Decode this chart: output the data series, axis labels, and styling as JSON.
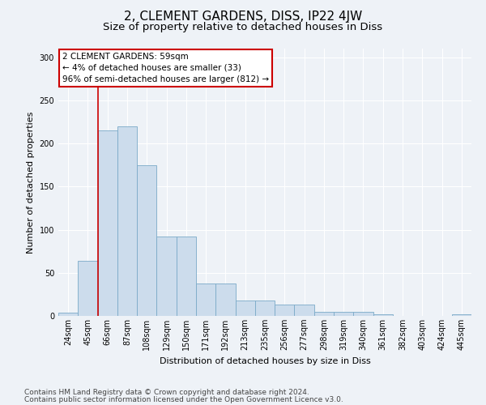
{
  "title": "2, CLEMENT GARDENS, DISS, IP22 4JW",
  "subtitle": "Size of property relative to detached houses in Diss",
  "xlabel": "Distribution of detached houses by size in Diss",
  "ylabel": "Number of detached properties",
  "categories": [
    "24sqm",
    "45sqm",
    "66sqm",
    "87sqm",
    "108sqm",
    "129sqm",
    "150sqm",
    "171sqm",
    "192sqm",
    "213sqm",
    "235sqm",
    "256sqm",
    "277sqm",
    "298sqm",
    "319sqm",
    "340sqm",
    "361sqm",
    "382sqm",
    "403sqm",
    "424sqm",
    "445sqm"
  ],
  "values": [
    4,
    64,
    215,
    220,
    175,
    92,
    92,
    38,
    38,
    18,
    18,
    13,
    13,
    5,
    5,
    5,
    2,
    0,
    0,
    0,
    2
  ],
  "bar_color": "#ccdcec",
  "bar_edge_color": "#7aaac8",
  "vline_x": 1.5,
  "vline_color": "#cc0000",
  "annotation_box_text": "2 CLEMENT GARDENS: 59sqm\n← 4% of detached houses are smaller (33)\n96% of semi-detached houses are larger (812) →",
  "annotation_box_color": "#cc0000",
  "ylim": [
    0,
    310
  ],
  "yticks": [
    0,
    50,
    100,
    150,
    200,
    250,
    300
  ],
  "footer_line1": "Contains HM Land Registry data © Crown copyright and database right 2024.",
  "footer_line2": "Contains public sector information licensed under the Open Government Licence v3.0.",
  "background_color": "#eef2f7",
  "plot_bg_color": "#eef2f7",
  "grid_color": "#ffffff",
  "title_fontsize": 11,
  "subtitle_fontsize": 9.5,
  "label_fontsize": 8,
  "tick_fontsize": 7,
  "annot_fontsize": 7.5,
  "footer_fontsize": 6.5
}
